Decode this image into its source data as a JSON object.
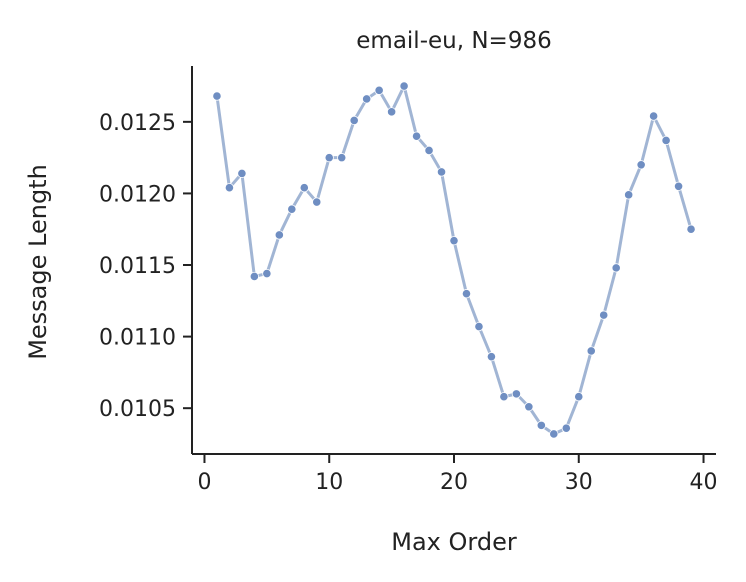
{
  "chart_data": {
    "type": "line",
    "title": "email-eu, N=986",
    "xlabel": "Max Order",
    "ylabel": "Message Length",
    "xlim": [
      -1,
      41
    ],
    "ylim": [
      0.01018,
      0.01289
    ],
    "xticks": [
      0,
      10,
      20,
      30,
      40
    ],
    "xtick_labels": [
      "0",
      "10",
      "20",
      "30",
      "40"
    ],
    "yticks": [
      0.0105,
      0.011,
      0.0115,
      0.012,
      0.0125
    ],
    "ytick_labels": [
      "0.0105",
      "0.0110",
      "0.0115",
      "0.0120",
      "0.0125"
    ],
    "grid": false,
    "line_color": "#a1b5d4",
    "marker_color": "#6f8ec2",
    "series": [
      {
        "x": [
          1,
          2,
          3,
          4,
          5,
          6,
          7,
          8,
          9,
          10,
          11,
          12,
          13,
          14,
          15,
          16,
          17,
          18,
          19,
          20,
          21,
          22,
          23,
          24,
          25,
          26,
          27,
          28,
          29,
          30,
          31,
          32,
          33,
          34,
          35,
          36,
          37,
          38,
          39
        ],
        "values": [
          0.01268,
          0.01204,
          0.01214,
          0.01142,
          0.01144,
          0.01171,
          0.01189,
          0.01204,
          0.01194,
          0.01225,
          0.01225,
          0.01251,
          0.01266,
          0.01272,
          0.01257,
          0.01275,
          0.0124,
          0.0123,
          0.01215,
          0.01167,
          0.0113,
          0.01107,
          0.01086,
          0.01058,
          0.0106,
          0.01051,
          0.01038,
          0.01032,
          0.01036,
          0.01058,
          0.0109,
          0.01115,
          0.01148,
          0.01199,
          0.0122,
          0.01254,
          0.01237,
          0.01205,
          0.01175
        ]
      }
    ]
  }
}
